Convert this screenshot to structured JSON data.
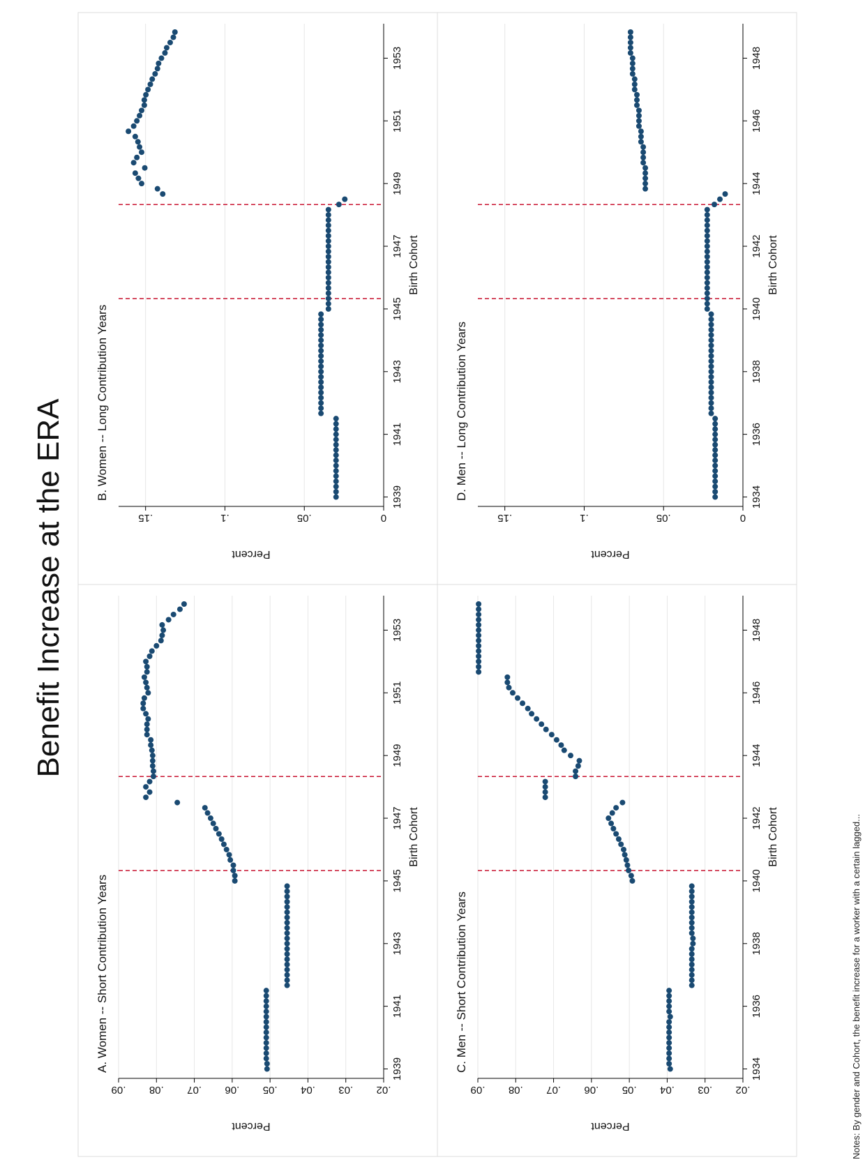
{
  "figure": {
    "title": "Benefit Increase at the ERA",
    "note": "Notes: By gender and Cohort, the benefit increase for a worker with a certain lagged..."
  },
  "chart_data": [
    {
      "type": "scatter",
      "title": "A. Women -- Short Contribution Years",
      "xlabel": "Birth Cohort",
      "ylabel": "Percent",
      "xlim": [
        1938.7,
        1954.1
      ],
      "ylim": [
        0.02,
        0.09
      ],
      "xticks": [
        1939,
        1941,
        1943,
        1945,
        1947,
        1949,
        1951,
        1953
      ],
      "yticks": [
        0.02,
        0.03,
        0.04,
        0.05,
        0.06,
        0.07,
        0.08,
        0.09
      ],
      "ytick_labels": [
        ".02",
        ".03",
        ".04",
        ".05",
        ".06",
        ".07",
        ".08",
        ".09"
      ],
      "vlines": [
        1945.33,
        1948.33
      ],
      "grid": true,
      "x": [
        1939,
        1939.167,
        1939.333,
        1939.5,
        1939.667,
        1939.833,
        1940,
        1940.167,
        1940.333,
        1940.5,
        1940.667,
        1940.833,
        1941,
        1941.167,
        1941.333,
        1941.5,
        1941.667,
        1941.833,
        1942,
        1942.167,
        1942.333,
        1942.5,
        1942.667,
        1942.833,
        1943,
        1943.167,
        1943.333,
        1943.5,
        1943.667,
        1943.833,
        1944,
        1944.167,
        1944.333,
        1944.5,
        1944.667,
        1944.833,
        1945,
        1945.167,
        1945.333,
        1945.5,
        1945.667,
        1945.833,
        1946,
        1946.167,
        1946.333,
        1946.5,
        1946.667,
        1946.833,
        1947,
        1947.167,
        1947.333,
        1947.5,
        1947.667,
        1947.833,
        1948,
        1948.167,
        1948.333,
        1948.5,
        1948.667,
        1948.833,
        1949,
        1949.167,
        1949.333,
        1949.5,
        1949.667,
        1949.833,
        1950,
        1950.167,
        1950.333,
        1950.5,
        1950.667,
        1950.833,
        1951,
        1951.167,
        1951.333,
        1951.5,
        1951.667,
        1951.833,
        1952,
        1952.167,
        1952.333,
        1952.5,
        1952.667,
        1952.833,
        1953,
        1953.167,
        1953.333,
        1953.5,
        1953.667,
        1953.833
      ],
      "y": [
        0.0508,
        0.0508,
        0.051,
        0.051,
        0.051,
        0.051,
        0.051,
        0.051,
        0.051,
        0.051,
        0.051,
        0.051,
        0.051,
        0.051,
        0.051,
        0.051,
        0.0455,
        0.0455,
        0.0455,
        0.0455,
        0.0455,
        0.0455,
        0.0455,
        0.0455,
        0.0455,
        0.0455,
        0.0455,
        0.0455,
        0.0455,
        0.0455,
        0.0455,
        0.0455,
        0.0455,
        0.0455,
        0.0455,
        0.0455,
        0.0593,
        0.0593,
        0.0597,
        0.0597,
        0.0605,
        0.0608,
        0.0615,
        0.0622,
        0.0628,
        0.0635,
        0.0643,
        0.065,
        0.0657,
        0.0665,
        0.0672,
        0.0745,
        0.0828,
        0.0818,
        0.0828,
        0.0818,
        0.0808,
        0.0808,
        0.081,
        0.081,
        0.081,
        0.0812,
        0.0815,
        0.0815,
        0.0825,
        0.0825,
        0.0825,
        0.0822,
        0.0828,
        0.0835,
        0.0835,
        0.0832,
        0.0822,
        0.0825,
        0.0828,
        0.0832,
        0.0825,
        0.0825,
        0.0828,
        0.0818,
        0.0812,
        0.08,
        0.0788,
        0.0785,
        0.0782,
        0.0785,
        0.0768,
        0.0755,
        0.0738,
        0.0727
      ]
    },
    {
      "type": "scatter",
      "title": "B. Women -- Long Contribution Years",
      "xlabel": "Birth Cohort",
      "ylabel": "Percent",
      "xlim": [
        1938.7,
        1954.1
      ],
      "ylim": [
        0,
        0.167
      ],
      "xticks": [
        1939,
        1941,
        1943,
        1945,
        1947,
        1949,
        1951,
        1953
      ],
      "yticks": [
        0,
        0.05,
        0.1,
        0.15
      ],
      "ytick_labels": [
        "0",
        ".05",
        ".1",
        ".15"
      ],
      "vlines": [
        1945.33,
        1948.33
      ],
      "grid": true,
      "x": [
        1939,
        1939.167,
        1939.333,
        1939.5,
        1939.667,
        1939.833,
        1940,
        1940.167,
        1940.333,
        1940.5,
        1940.667,
        1940.833,
        1941,
        1941.167,
        1941.333,
        1941.5,
        1941.667,
        1941.833,
        1942,
        1942.167,
        1942.333,
        1942.5,
        1942.667,
        1942.833,
        1943,
        1943.167,
        1943.333,
        1943.5,
        1943.667,
        1943.833,
        1944,
        1944.167,
        1944.333,
        1944.5,
        1944.667,
        1944.833,
        1945,
        1945.167,
        1945.333,
        1945.5,
        1945.667,
        1945.833,
        1946,
        1946.167,
        1946.333,
        1946.5,
        1946.667,
        1946.833,
        1947,
        1947.167,
        1947.333,
        1947.5,
        1947.667,
        1947.833,
        1948,
        1948.167,
        1948.333,
        1948.5,
        1948.667,
        1948.833,
        1949,
        1949.167,
        1949.333,
        1949.5,
        1949.667,
        1949.833,
        1950,
        1950.167,
        1950.333,
        1950.5,
        1950.667,
        1950.833,
        1951,
        1951.167,
        1951.333,
        1951.5,
        1951.667,
        1951.833,
        1952,
        1952.167,
        1952.333,
        1952.5,
        1952.667,
        1952.833,
        1953,
        1953.167,
        1953.333,
        1953.5,
        1953.667,
        1953.833
      ],
      "y": [
        0.03,
        0.03,
        0.03,
        0.03,
        0.03,
        0.03,
        0.03,
        0.03,
        0.03,
        0.03,
        0.03,
        0.03,
        0.03,
        0.03,
        0.03,
        0.03,
        0.0395,
        0.0395,
        0.0395,
        0.0395,
        0.0395,
        0.0395,
        0.0395,
        0.0395,
        0.0395,
        0.0395,
        0.0395,
        0.0395,
        0.0395,
        0.0395,
        0.0395,
        0.0395,
        0.0395,
        0.0395,
        0.0395,
        0.0395,
        0.0348,
        0.0348,
        0.0348,
        0.0348,
        0.0348,
        0.0348,
        0.0348,
        0.0348,
        0.0348,
        0.0348,
        0.0348,
        0.0348,
        0.0348,
        0.0348,
        0.0348,
        0.0348,
        0.0348,
        0.0348,
        0.0348,
        0.0348,
        0.0282,
        0.0245,
        0.1392,
        0.1425,
        0.1525,
        0.1545,
        0.1565,
        0.1505,
        0.1575,
        0.1555,
        0.1525,
        0.1538,
        0.1548,
        0.1565,
        0.1608,
        0.1575,
        0.1555,
        0.1538,
        0.1525,
        0.1508,
        0.1508,
        0.1498,
        0.1485,
        0.147,
        0.1458,
        0.144,
        0.1425,
        0.1418,
        0.14,
        0.1378,
        0.1367,
        0.1345,
        0.1325,
        0.1315
      ]
    },
    {
      "type": "scatter",
      "title": "C. Men -- Short Contribution Years",
      "xlabel": "Birth Cohort",
      "ylabel": "Percent",
      "xlim": [
        1933.7,
        1949.1
      ],
      "ylim": [
        0.02,
        0.09
      ],
      "xticks": [
        1934,
        1936,
        1938,
        1940,
        1942,
        1944,
        1946,
        1948
      ],
      "yticks": [
        0.02,
        0.03,
        0.04,
        0.05,
        0.06,
        0.07,
        0.08,
        0.09
      ],
      "ytick_labels": [
        ".02",
        ".03",
        ".04",
        ".05",
        ".06",
        ".07",
        ".08",
        ".09"
      ],
      "vlines": [
        1940.33,
        1943.33
      ],
      "grid": true,
      "x": [
        1934,
        1934.167,
        1934.333,
        1934.5,
        1934.667,
        1934.833,
        1935,
        1935.167,
        1935.333,
        1935.5,
        1935.667,
        1935.833,
        1936,
        1936.167,
        1936.333,
        1936.5,
        1936.667,
        1936.833,
        1937,
        1937.167,
        1937.333,
        1937.5,
        1937.667,
        1937.833,
        1938,
        1938.167,
        1938.333,
        1938.5,
        1938.667,
        1938.833,
        1939,
        1939.167,
        1939.333,
        1939.5,
        1939.667,
        1939.833,
        1940,
        1940.167,
        1940.333,
        1940.5,
        1940.667,
        1940.833,
        1941,
        1941.167,
        1941.333,
        1941.5,
        1941.667,
        1941.833,
        1942,
        1942.167,
        1942.333,
        1942.5,
        1942.667,
        1942.833,
        1943,
        1943.167,
        1943.333,
        1943.5,
        1943.667,
        1943.833,
        1944,
        1944.167,
        1944.333,
        1944.5,
        1944.667,
        1944.833,
        1945,
        1945.167,
        1945.333,
        1945.5,
        1945.667,
        1945.833,
        1946,
        1946.167,
        1946.333,
        1946.5,
        1946.667,
        1946.833,
        1947,
        1947.167,
        1947.333,
        1947.5,
        1947.667,
        1947.833,
        1948,
        1948.167,
        1948.333,
        1948.5,
        1948.667,
        1948.833
      ],
      "y": [
        0.0392,
        0.0395,
        0.0395,
        0.0395,
        0.0395,
        0.0395,
        0.0395,
        0.0395,
        0.0395,
        0.0395,
        0.0392,
        0.0395,
        0.0395,
        0.0395,
        0.0395,
        0.0395,
        0.0335,
        0.0335,
        0.0335,
        0.0335,
        0.0335,
        0.0335,
        0.0335,
        0.0335,
        0.0332,
        0.0332,
        0.0335,
        0.0335,
        0.0335,
        0.0335,
        0.0335,
        0.0335,
        0.0335,
        0.0335,
        0.0335,
        0.0335,
        0.0492,
        0.0495,
        0.0502,
        0.0505,
        0.0508,
        0.0512,
        0.0515,
        0.0522,
        0.0528,
        0.0535,
        0.0542,
        0.0548,
        0.0555,
        0.0545,
        0.0535,
        0.0518,
        0.0722,
        0.0722,
        0.0722,
        0.0722,
        0.0642,
        0.0642,
        0.0635,
        0.0632,
        0.0655,
        0.0672,
        0.068,
        0.0692,
        0.0705,
        0.072,
        0.0732,
        0.0745,
        0.0758,
        0.0768,
        0.0782,
        0.0795,
        0.0808,
        0.0818,
        0.0822,
        0.0822,
        0.0898,
        0.0898,
        0.0898,
        0.0898,
        0.0898,
        0.0898,
        0.0898,
        0.0898,
        0.0898,
        0.0898,
        0.0898,
        0.0898,
        0.0898,
        0.0898
      ]
    },
    {
      "type": "scatter",
      "title": "D. Men -- Long Contribution Years",
      "xlabel": "Birth Cohort",
      "ylabel": "Percent",
      "xlim": [
        1933.7,
        1949.1
      ],
      "ylim": [
        0,
        0.167
      ],
      "xticks": [
        1934,
        1936,
        1938,
        1940,
        1942,
        1944,
        1946,
        1948
      ],
      "yticks": [
        0,
        0.05,
        0.1,
        0.15
      ],
      "ytick_labels": [
        "0",
        ".05",
        ".1",
        ".15"
      ],
      "vlines": [
        1940.33,
        1943.33
      ],
      "grid": true,
      "x": [
        1934,
        1934.167,
        1934.333,
        1934.5,
        1934.667,
        1934.833,
        1935,
        1935.167,
        1935.333,
        1935.5,
        1935.667,
        1935.833,
        1936,
        1936.167,
        1936.333,
        1936.5,
        1936.667,
        1936.833,
        1937,
        1937.167,
        1937.333,
        1937.5,
        1937.667,
        1937.833,
        1938,
        1938.167,
        1938.333,
        1938.5,
        1938.667,
        1938.833,
        1939,
        1939.167,
        1939.333,
        1939.5,
        1939.667,
        1939.833,
        1940,
        1940.167,
        1940.333,
        1940.5,
        1940.667,
        1940.833,
        1941,
        1941.167,
        1941.333,
        1941.5,
        1941.667,
        1941.833,
        1942,
        1942.167,
        1942.333,
        1942.5,
        1942.667,
        1942.833,
        1943,
        1943.167,
        1943.333,
        1943.5,
        1943.667,
        1943.833,
        1944,
        1944.167,
        1944.333,
        1944.5,
        1944.667,
        1944.833,
        1945,
        1945.167,
        1945.333,
        1945.5,
        1945.667,
        1945.833,
        1946,
        1946.167,
        1946.333,
        1946.5,
        1946.667,
        1946.833,
        1947,
        1947.167,
        1947.333,
        1947.5,
        1947.667,
        1947.833,
        1948,
        1948.167,
        1948.333,
        1948.5,
        1948.667,
        1948.833
      ],
      "y": [
        0.0175,
        0.0175,
        0.0175,
        0.0175,
        0.0175,
        0.0175,
        0.0175,
        0.0175,
        0.0175,
        0.0175,
        0.0175,
        0.0175,
        0.0175,
        0.0175,
        0.0175,
        0.0175,
        0.02,
        0.02,
        0.02,
        0.02,
        0.02,
        0.02,
        0.02,
        0.02,
        0.02,
        0.02,
        0.02,
        0.02,
        0.02,
        0.02,
        0.02,
        0.02,
        0.02,
        0.02,
        0.02,
        0.02,
        0.0225,
        0.0225,
        0.0225,
        0.0225,
        0.0225,
        0.0225,
        0.0225,
        0.0225,
        0.0225,
        0.0225,
        0.0225,
        0.0225,
        0.0225,
        0.0225,
        0.0225,
        0.0225,
        0.0225,
        0.0225,
        0.0225,
        0.0225,
        0.018,
        0.0145,
        0.0112,
        0.0615,
        0.0615,
        0.0615,
        0.0615,
        0.0615,
        0.0628,
        0.0628,
        0.0628,
        0.0628,
        0.0642,
        0.0642,
        0.0642,
        0.0655,
        0.0655,
        0.0655,
        0.0655,
        0.0668,
        0.0668,
        0.0668,
        0.0682,
        0.0682,
        0.0682,
        0.0695,
        0.0695,
        0.0695,
        0.0695,
        0.0708,
        0.0708,
        0.0708,
        0.0708,
        0.0708
      ]
    }
  ]
}
